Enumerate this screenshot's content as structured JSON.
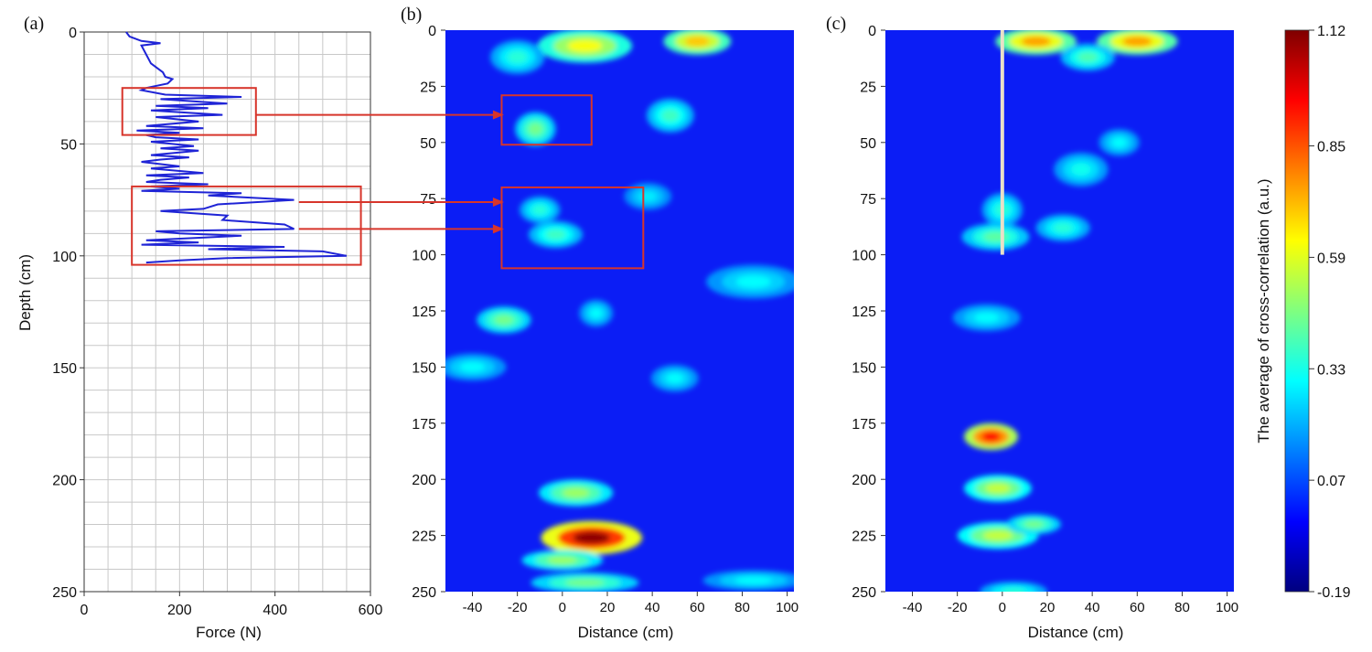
{
  "chart_data": [
    {
      "panel_label": "(a)",
      "type": "line",
      "xlabel": "Force (N)",
      "ylabel": "Depth (cm)",
      "xlim": [
        0,
        600
      ],
      "ylim": [
        250,
        0
      ],
      "x_ticks": [
        "0",
        "200",
        "400",
        "600"
      ],
      "y_ticks": [
        "0",
        "50",
        "100",
        "150",
        "200",
        "250"
      ],
      "grid": true,
      "series": [
        {
          "color": "#1f24d6",
          "points": [
            [
              88,
              0
            ],
            [
              95,
              2
            ],
            [
              120,
              4
            ],
            [
              160,
              5
            ],
            [
              120,
              6
            ],
            [
              130,
              10
            ],
            [
              140,
              14
            ],
            [
              165,
              18
            ],
            [
              170,
              20
            ],
            [
              185,
              21
            ],
            [
              175,
              23
            ],
            [
              130,
              25
            ],
            [
              120,
              26
            ],
            [
              170,
              28
            ],
            [
              330,
              29
            ],
            [
              160,
              30
            ],
            [
              300,
              32
            ],
            [
              150,
              33
            ],
            [
              260,
              34
            ],
            [
              140,
              35
            ],
            [
              290,
              37
            ],
            [
              150,
              38
            ],
            [
              240,
              40
            ],
            [
              130,
              42
            ],
            [
              250,
              43
            ],
            [
              110,
              44
            ],
            [
              200,
              45
            ],
            [
              130,
              46
            ],
            [
              150,
              47
            ],
            [
              240,
              48
            ],
            [
              140,
              49
            ],
            [
              230,
              51
            ],
            [
              160,
              52
            ],
            [
              240,
              53
            ],
            [
              140,
              55
            ],
            [
              220,
              56
            ],
            [
              160,
              57
            ],
            [
              120,
              58
            ],
            [
              200,
              60
            ],
            [
              140,
              61
            ],
            [
              250,
              63
            ],
            [
              130,
              64
            ],
            [
              220,
              65
            ],
            [
              160,
              66
            ],
            [
              130,
              67
            ],
            [
              260,
              68
            ],
            [
              140,
              69
            ],
            [
              200,
              70
            ],
            [
              120,
              71
            ],
            [
              330,
              72
            ],
            [
              260,
              73
            ],
            [
              440,
              75
            ],
            [
              280,
              77
            ],
            [
              250,
              79
            ],
            [
              160,
              80
            ],
            [
              300,
              82
            ],
            [
              290,
              84
            ],
            [
              420,
              86
            ],
            [
              440,
              88
            ],
            [
              150,
              89
            ],
            [
              200,
              90
            ],
            [
              330,
              91
            ],
            [
              130,
              93
            ],
            [
              240,
              94
            ],
            [
              120,
              95
            ],
            [
              420,
              96
            ],
            [
              260,
              97
            ],
            [
              500,
              98
            ],
            [
              550,
              100
            ],
            [
              300,
              101
            ],
            [
              200,
              102
            ],
            [
              130,
              103
            ]
          ]
        }
      ],
      "highlight_boxes": [
        {
          "x": [
            80,
            360
          ],
          "y": [
            25,
            46
          ]
        },
        {
          "x": [
            100,
            580
          ],
          "y": [
            69,
            104
          ]
        }
      ]
    },
    {
      "panel_label": "(b)",
      "type": "heatmap",
      "xlabel": "Distance (cm)",
      "ylabel": "",
      "xlim": [
        -52,
        103
      ],
      "ylim": [
        250,
        0
      ],
      "x_ticks": [
        "-40",
        "-20",
        "0",
        "20",
        "40",
        "60",
        "80",
        "100"
      ],
      "y_ticks": [
        "0",
        "25",
        "50",
        "75",
        "100",
        "125",
        "150",
        "175",
        "200",
        "225",
        "250"
      ],
      "hotspots": [
        {
          "x": 10,
          "y": 7,
          "sx": 14,
          "sy": 5,
          "v": 0.62
        },
        {
          "x": 60,
          "y": 5,
          "sx": 10,
          "sy": 4,
          "v": 0.7
        },
        {
          "x": -20,
          "y": 12,
          "sx": 8,
          "sy": 5,
          "v": 0.35
        },
        {
          "x": -12,
          "y": 44,
          "sx": 6,
          "sy": 5,
          "v": 0.45
        },
        {
          "x": 48,
          "y": 38,
          "sx": 7,
          "sy": 5,
          "v": 0.38
        },
        {
          "x": -10,
          "y": 80,
          "sx": 6,
          "sy": 4,
          "v": 0.35
        },
        {
          "x": -3,
          "y": 91,
          "sx": 8,
          "sy": 4,
          "v": 0.38
        },
        {
          "x": 38,
          "y": 74,
          "sx": 7,
          "sy": 4,
          "v": 0.28
        },
        {
          "x": -26,
          "y": 129,
          "sx": 8,
          "sy": 4,
          "v": 0.45
        },
        {
          "x": 15,
          "y": 126,
          "sx": 5,
          "sy": 4,
          "v": 0.3
        },
        {
          "x": 85,
          "y": 112,
          "sx": 14,
          "sy": 5,
          "v": 0.3
        },
        {
          "x": -40,
          "y": 150,
          "sx": 10,
          "sy": 4,
          "v": 0.3
        },
        {
          "x": 50,
          "y": 155,
          "sx": 7,
          "sy": 4,
          "v": 0.3
        },
        {
          "x": 6,
          "y": 206,
          "sx": 11,
          "sy": 4,
          "v": 0.5
        },
        {
          "x": 13,
          "y": 226,
          "sx": 15,
          "sy": 5,
          "v": 1.1
        },
        {
          "x": 0,
          "y": 236,
          "sx": 12,
          "sy": 3,
          "v": 0.5
        },
        {
          "x": 10,
          "y": 246,
          "sx": 16,
          "sy": 3,
          "v": 0.45
        },
        {
          "x": 85,
          "y": 245,
          "sx": 15,
          "sy": 3,
          "v": 0.3
        }
      ],
      "highlight_boxes": [
        {
          "x": [
            -27,
            13
          ],
          "y": [
            29,
            51
          ]
        },
        {
          "x": [
            -27,
            36
          ],
          "y": [
            70,
            106
          ]
        }
      ]
    },
    {
      "panel_label": "(c)",
      "type": "heatmap",
      "xlabel": "Distance (cm)",
      "ylabel": "",
      "xlim": [
        -52,
        103
      ],
      "ylim": [
        250,
        0
      ],
      "x_ticks": [
        "-40",
        "-20",
        "0",
        "20",
        "40",
        "60",
        "80",
        "100"
      ],
      "y_ticks": [
        "0",
        "25",
        "50",
        "75",
        "100",
        "125",
        "150",
        "175",
        "200",
        "225",
        "250"
      ],
      "vertical_line": {
        "x": 0,
        "y": [
          0,
          100
        ]
      },
      "hotspots": [
        {
          "x": 15,
          "y": 5,
          "sx": 12,
          "sy": 4,
          "v": 0.75
        },
        {
          "x": 60,
          "y": 5,
          "sx": 12,
          "sy": 4,
          "v": 0.75
        },
        {
          "x": 38,
          "y": 12,
          "sx": 8,
          "sy": 4,
          "v": 0.4
        },
        {
          "x": 35,
          "y": 62,
          "sx": 8,
          "sy": 5,
          "v": 0.32
        },
        {
          "x": 52,
          "y": 50,
          "sx": 6,
          "sy": 4,
          "v": 0.3
        },
        {
          "x": 0,
          "y": 80,
          "sx": 6,
          "sy": 5,
          "v": 0.35
        },
        {
          "x": -3,
          "y": 92,
          "sx": 10,
          "sy": 4,
          "v": 0.42
        },
        {
          "x": 27,
          "y": 88,
          "sx": 8,
          "sy": 4,
          "v": 0.35
        },
        {
          "x": -7,
          "y": 128,
          "sx": 10,
          "sy": 4,
          "v": 0.3
        },
        {
          "x": -5,
          "y": 181,
          "sx": 8,
          "sy": 4,
          "v": 0.95
        },
        {
          "x": -2,
          "y": 204,
          "sx": 10,
          "sy": 4,
          "v": 0.55
        },
        {
          "x": -2,
          "y": 225,
          "sx": 12,
          "sy": 4,
          "v": 0.55
        },
        {
          "x": 14,
          "y": 220,
          "sx": 8,
          "sy": 3,
          "v": 0.45
        },
        {
          "x": 5,
          "y": 250,
          "sx": 10,
          "sy": 3,
          "v": 0.35
        }
      ]
    },
    {
      "type": "colorbar",
      "label": "The average of cross-correlation (a.u.)",
      "range": [
        -0.19,
        1.12
      ],
      "ticks": [
        "1.12",
        "0.85",
        "0.59",
        "0.33",
        "0.07",
        "-0.19"
      ]
    }
  ]
}
